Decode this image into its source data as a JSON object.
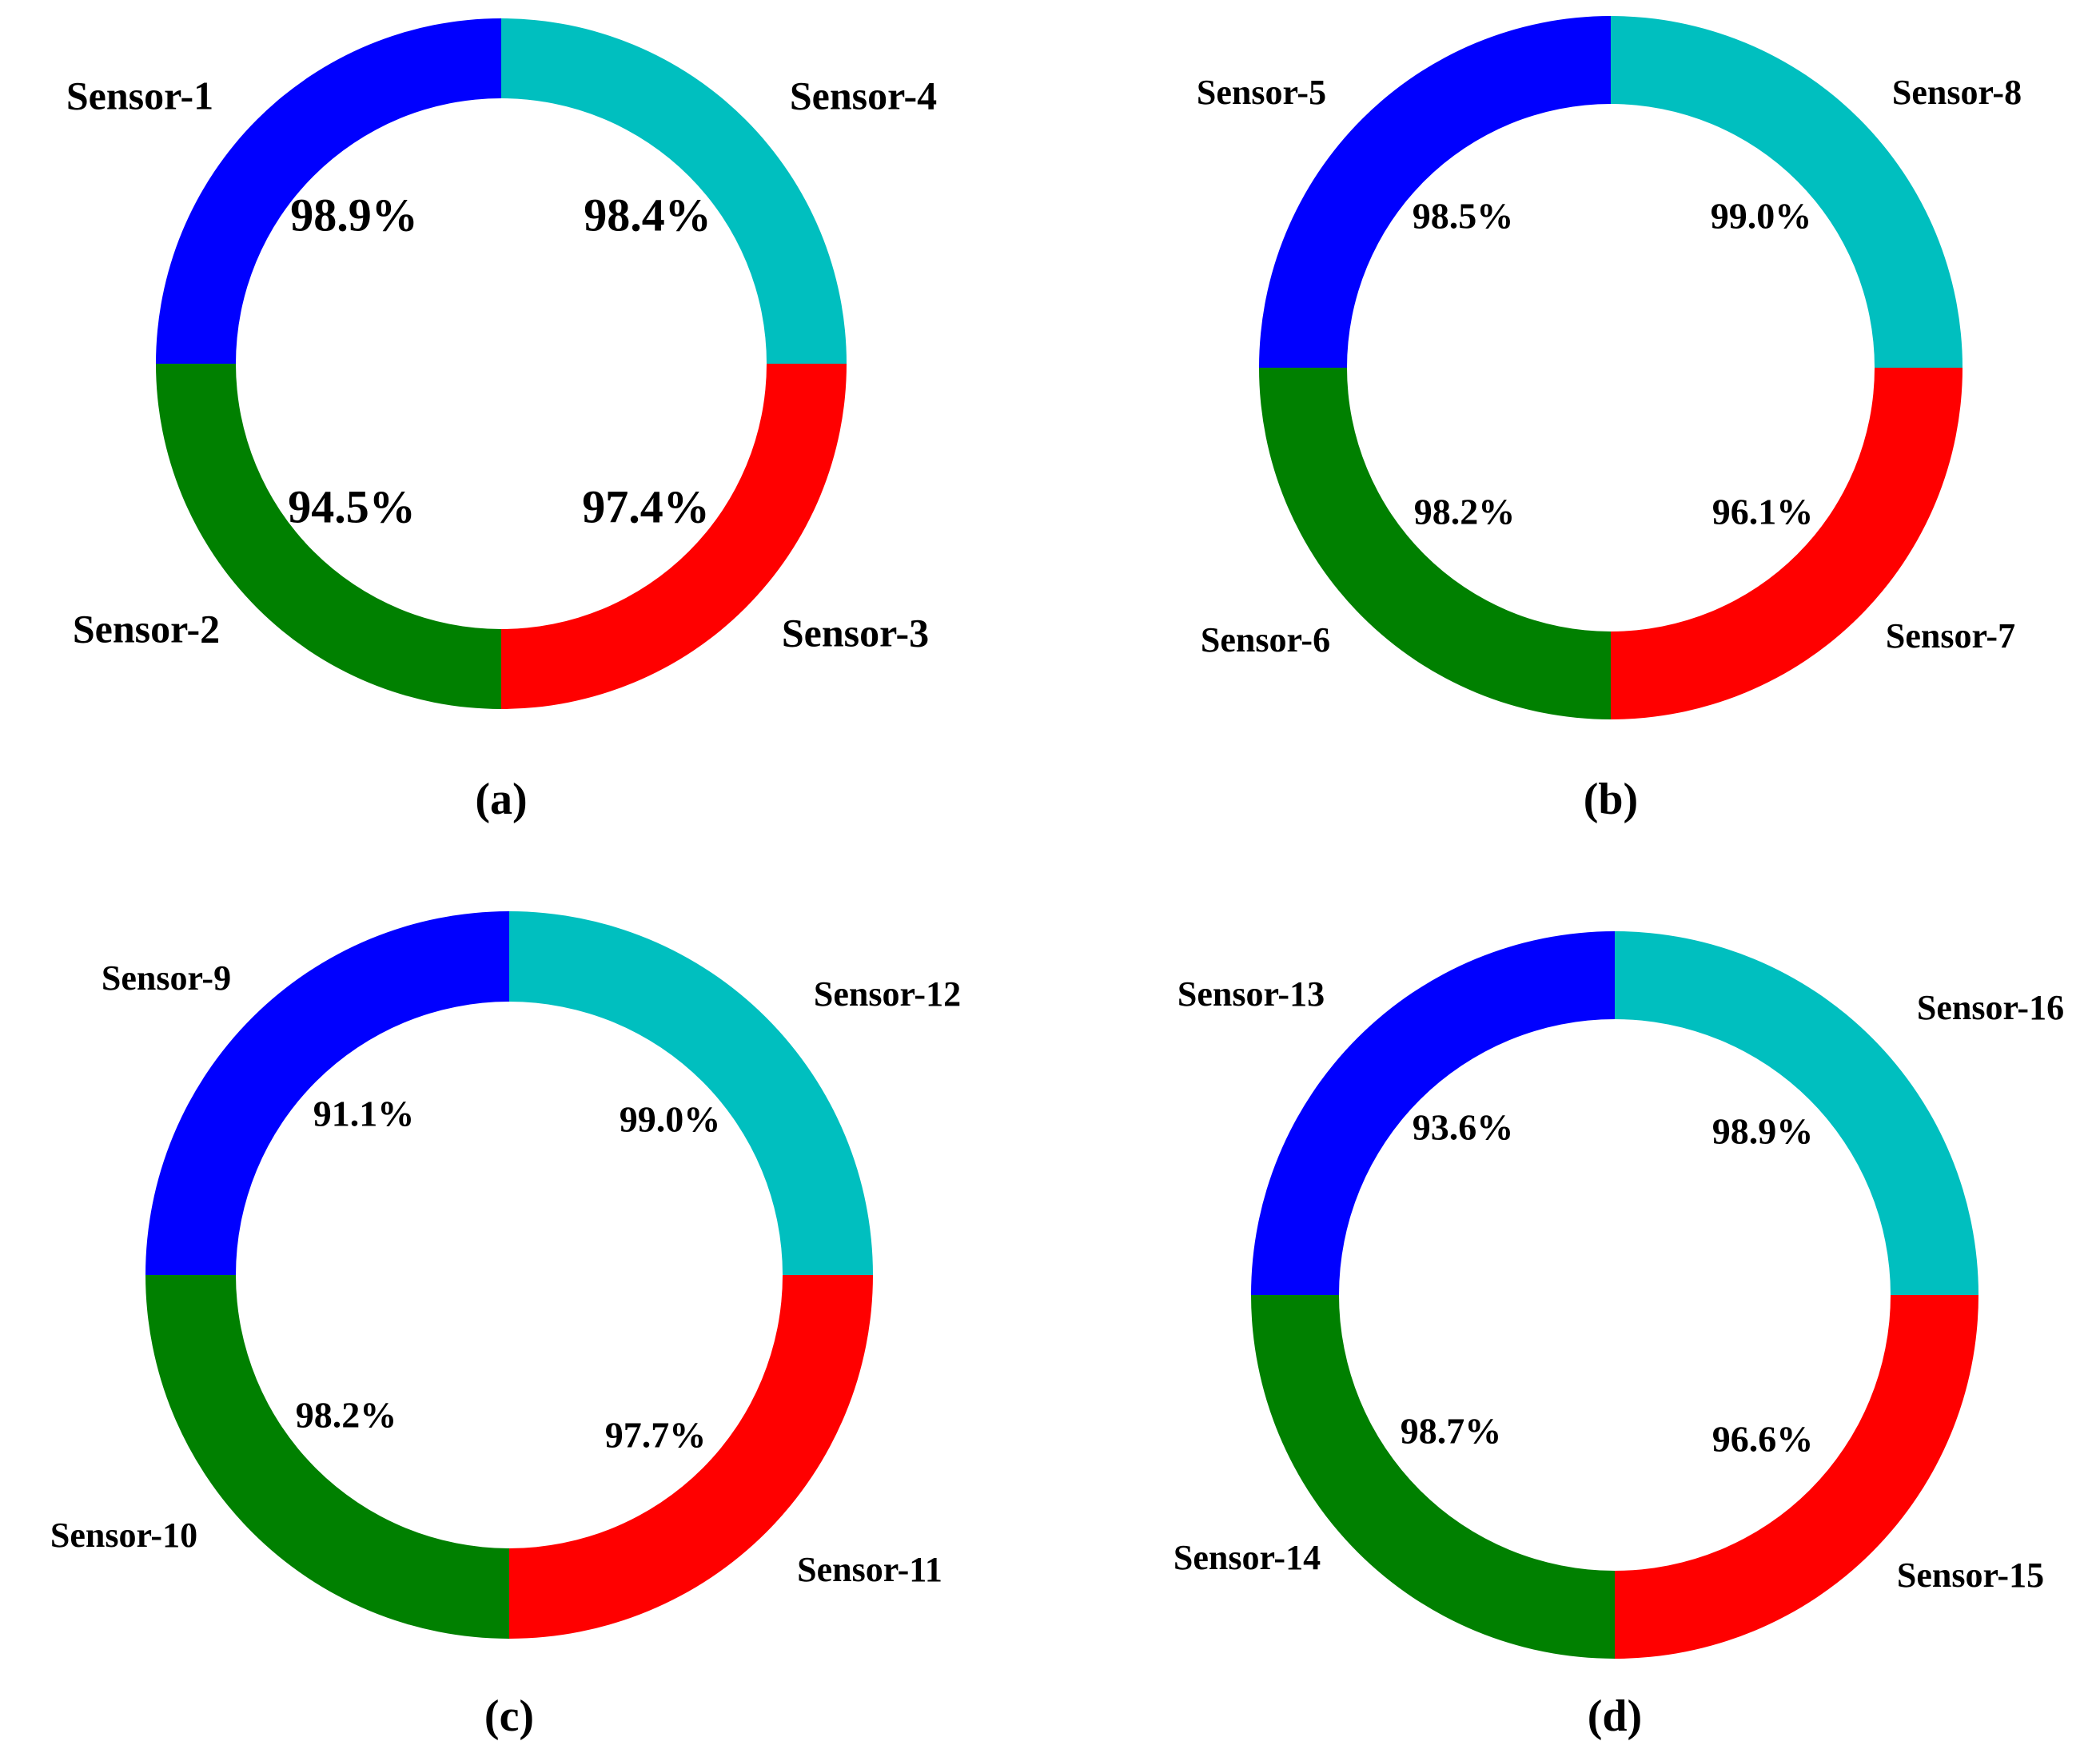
{
  "colors": {
    "top_left": "#0000ff",
    "bottom_left": "#008000",
    "bottom_right": "#ff0000",
    "top_right": "#00bfbf"
  },
  "chart_data": [
    {
      "type": "pie",
      "style": "donut",
      "caption": "(a)",
      "slices": [
        {
          "label": "Sensor-1",
          "value_label": "98.9%",
          "value": 98.9,
          "color": "#0000ff",
          "quadrant": "top-left"
        },
        {
          "label": "Sensor-2",
          "value_label": "94.5%",
          "value": 94.5,
          "color": "#008000",
          "quadrant": "bottom-left"
        },
        {
          "label": "Sensor-3",
          "value_label": "97.4%",
          "value": 97.4,
          "color": "#ff0000",
          "quadrant": "bottom-right"
        },
        {
          "label": "Sensor-4",
          "value_label": "98.4%",
          "value": 98.4,
          "color": "#00bfbf",
          "quadrant": "top-right"
        }
      ]
    },
    {
      "type": "pie",
      "style": "donut",
      "caption": "(b)",
      "slices": [
        {
          "label": "Sensor-5",
          "value_label": "98.5%",
          "value": 98.5,
          "color": "#0000ff",
          "quadrant": "top-left"
        },
        {
          "label": "Sensor-6",
          "value_label": "98.2%",
          "value": 98.2,
          "color": "#008000",
          "quadrant": "bottom-left"
        },
        {
          "label": "Sensor-7",
          "value_label": "96.1%",
          "value": 96.1,
          "color": "#ff0000",
          "quadrant": "bottom-right"
        },
        {
          "label": "Sensor-8",
          "value_label": "99.0%",
          "value": 99.0,
          "color": "#00bfbf",
          "quadrant": "top-right"
        }
      ]
    },
    {
      "type": "pie",
      "style": "donut",
      "caption": "(c)",
      "slices": [
        {
          "label": "Sensor-9",
          "value_label": "91.1%",
          "value": 91.1,
          "color": "#0000ff",
          "quadrant": "top-left"
        },
        {
          "label": "Sensor-10",
          "value_label": "98.2%",
          "value": 98.2,
          "color": "#008000",
          "quadrant": "bottom-left"
        },
        {
          "label": "Sensor-11",
          "value_label": "97.7%",
          "value": 97.7,
          "color": "#ff0000",
          "quadrant": "bottom-right"
        },
        {
          "label": "Sensor-12",
          "value_label": "99.0%",
          "value": 99.0,
          "color": "#00bfbf",
          "quadrant": "top-right"
        }
      ]
    },
    {
      "type": "pie",
      "style": "donut",
      "caption": "(d)",
      "slices": [
        {
          "label": "Sensor-13",
          "value_label": "93.6%",
          "value": 93.6,
          "color": "#0000ff",
          "quadrant": "top-left"
        },
        {
          "label": "Sensor-14",
          "value_label": "98.7%",
          "value": 98.7,
          "color": "#008000",
          "quadrant": "bottom-left"
        },
        {
          "label": "Sensor-15",
          "value_label": "96.6%",
          "value": 96.6,
          "color": "#ff0000",
          "quadrant": "bottom-right"
        },
        {
          "label": "Sensor-16",
          "value_label": "98.9%",
          "value": 98.9,
          "color": "#00bfbf",
          "quadrant": "top-right"
        }
      ]
    }
  ]
}
